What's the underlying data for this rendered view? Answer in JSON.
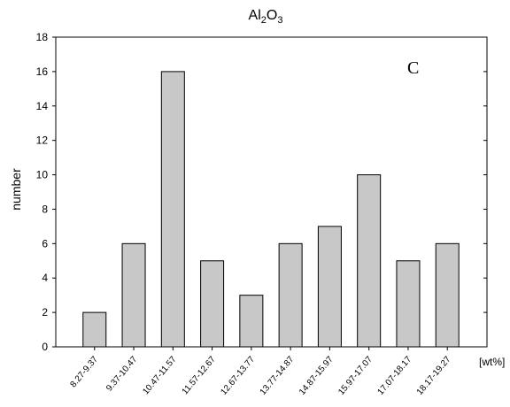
{
  "chart_data": {
    "type": "bar",
    "title": "Al2O3",
    "title_parts": {
      "base1": "Al",
      "sub1": "2",
      "base2": "O",
      "sub2": "3"
    },
    "panel_label": "C",
    "xlabel": "[wt%]",
    "ylabel": "number",
    "categories": [
      "8.27-9.37",
      "9.37-10.47",
      "10.47-11.57",
      "11.57-12.67",
      "12.67-13.77",
      "13.77-14.87",
      "14.87-15.97",
      "15.97-17.07",
      "17.07-18.17",
      "18.17-19.27"
    ],
    "values": [
      2,
      6,
      16,
      5,
      3,
      6,
      7,
      10,
      5,
      6
    ],
    "ylim": [
      0,
      18
    ],
    "yticks": [
      0,
      2,
      4,
      6,
      8,
      10,
      12,
      14,
      16,
      18
    ],
    "grid": false,
    "bar_fill": "#c8c8c8",
    "bar_stroke": "#000000"
  }
}
